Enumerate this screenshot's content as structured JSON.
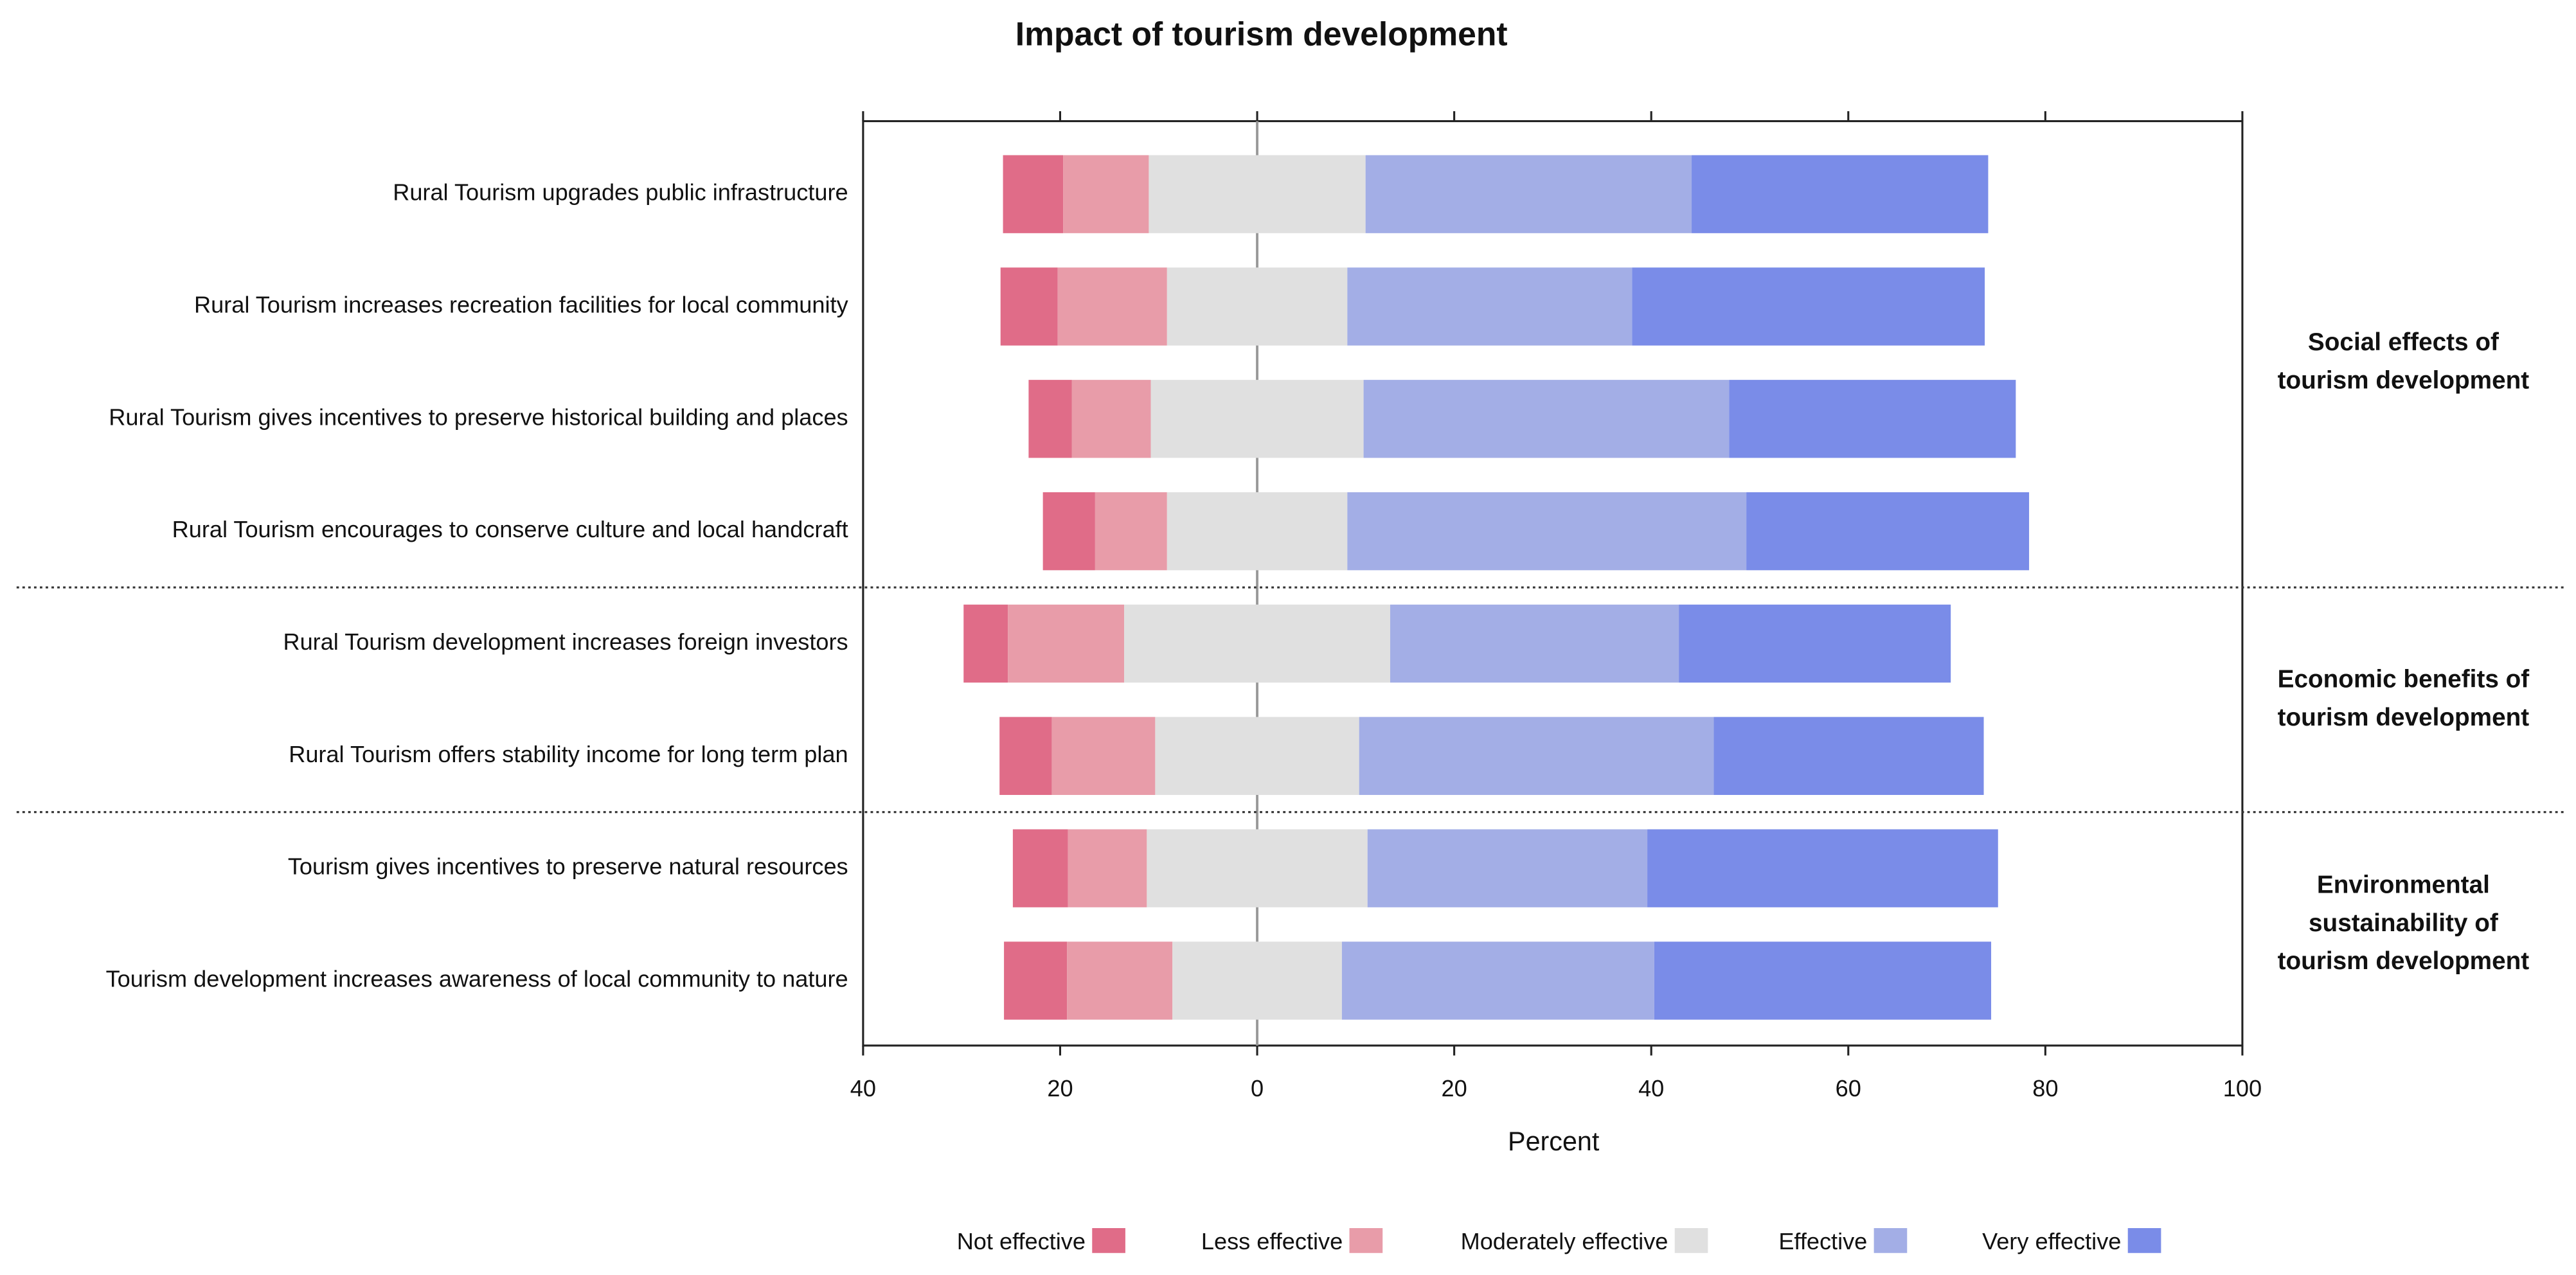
{
  "chart_data": {
    "type": "diverging-bar",
    "title": "Impact of tourism development",
    "x_label": "Percent",
    "categories": [
      "Rural Tourism upgrades public infrastructure",
      "Rural Tourism increases recreation facilities for local community",
      "Rural Tourism gives incentives to preserve historical building and places",
      "Rural Tourism encourages to conserve culture and local handcraft",
      "Rural Tourism development increases foreign investors",
      "Rural Tourism offers stability income for long term plan",
      "Tourism gives incentives to preserve natural resources",
      "Tourism development increases awareness of local community to nature"
    ],
    "series": [
      {
        "name": "Not effective",
        "color": "#e06c88",
        "values": [
          6.1,
          5.8,
          4.4,
          5.3,
          4.5,
          5.3,
          5.6,
          6.4
        ]
      },
      {
        "name": "Less effective",
        "color": "#e89ca9",
        "values": [
          8.7,
          11.1,
          8.0,
          7.3,
          11.8,
          10.5,
          8.0,
          10.7
        ]
      },
      {
        "name": "Moderately effective",
        "color": "#e0e0e0",
        "values": [
          22.0,
          18.3,
          21.6,
          18.3,
          27.0,
          20.7,
          22.4,
          17.2
        ]
      },
      {
        "name": "Effective",
        "color": "#a3aee6",
        "values": [
          33.1,
          28.9,
          37.1,
          40.5,
          29.3,
          36.0,
          28.4,
          31.7
        ]
      },
      {
        "name": "Very effective",
        "color": "#7a8ce8",
        "values": [
          30.1,
          35.8,
          29.1,
          28.7,
          27.6,
          27.4,
          35.6,
          34.2
        ]
      }
    ],
    "groups": [
      {
        "label": [
          "Social effects of",
          "tourism development"
        ],
        "size": 4
      },
      {
        "label": [
          "Economic benefits of",
          "tourism development"
        ],
        "size": 2
      },
      {
        "label": [
          "Environmental",
          "sustainability of",
          "tourism development"
        ],
        "size": 2
      }
    ],
    "xlim": [
      -40,
      100
    ],
    "xticks": [
      {
        "value": -40,
        "label": "40"
      },
      {
        "value": -20,
        "label": "20"
      },
      0,
      20,
      40,
      60,
      80,
      100
    ]
  }
}
